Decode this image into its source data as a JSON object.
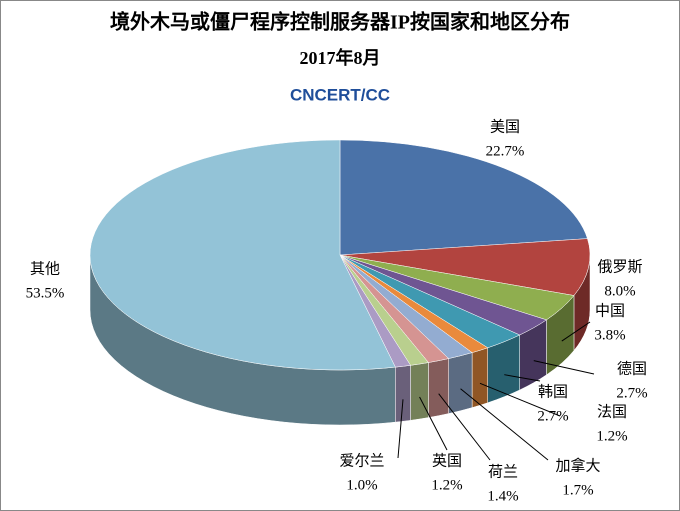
{
  "chart_data": {
    "type": "pie3d",
    "title": "境外木马或僵尸程序控制服务器IP按国家和地区分布",
    "subtitle": "2017年8月",
    "logo": "CNCERT/CC",
    "categories": [
      "美国",
      "俄罗斯",
      "中国",
      "德国",
      "韩国",
      "法国",
      "加拿大",
      "荷兰",
      "英国",
      "爱尔兰",
      "其他"
    ],
    "values": [
      22.7,
      8.0,
      3.8,
      2.7,
      2.7,
      1.2,
      1.7,
      1.4,
      1.2,
      1.0,
      53.5
    ],
    "value_labels": [
      "22.7%",
      "8.0%",
      "3.8%",
      "2.7%",
      "2.7%",
      "1.2%",
      "1.7%",
      "1.4%",
      "1.2%",
      "1.0%",
      "53.5%"
    ],
    "colors": [
      "#4a72a8",
      "#b2443f",
      "#8fae4f",
      "#6f5592",
      "#3f99b1",
      "#e98a3c",
      "#93acd1",
      "#d59492",
      "#b9cf8e",
      "#ab9bc4",
      "#93c3d7"
    ]
  }
}
